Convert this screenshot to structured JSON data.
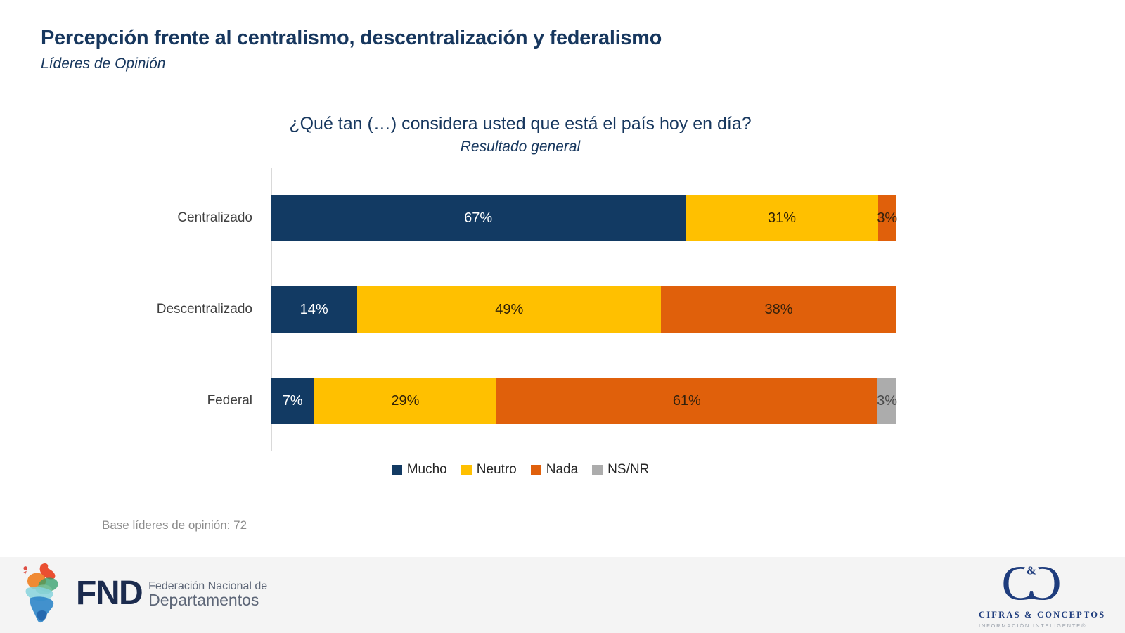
{
  "page": {
    "title": "Percepción frente al centralismo, descentralización y federalismo",
    "subtitle": "Líderes de Opinión"
  },
  "chart": {
    "title": "¿Qué tan (…) considera usted que está el país hoy en día?",
    "subtitle": "Resultado general",
    "base_note": "Base líderes de opinión: 72"
  },
  "chart_data": {
    "type": "bar",
    "orientation": "horizontal",
    "stacked": true,
    "unit": "%",
    "title": "¿Qué tan (…) considera usted que está el país hoy en día?",
    "subtitle": "Resultado general",
    "categories": [
      "Centralizado",
      "Descentralizado",
      "Federal"
    ],
    "series": [
      {
        "name": "Mucho",
        "color": "#123A63",
        "label_color": "#FFFFFF",
        "values": [
          67,
          14,
          7
        ]
      },
      {
        "name": "Neutro",
        "color": "#FFC000",
        "label_color": "#2E2008",
        "values": [
          31,
          49,
          29
        ]
      },
      {
        "name": "Nada",
        "color": "#E0600B",
        "label_color": "#33210C",
        "values": [
          3,
          38,
          61
        ]
      },
      {
        "name": "NS/NR",
        "color": "#ACACAC",
        "label_color": "#4A4A4A",
        "values": [
          0,
          0,
          3
        ]
      }
    ],
    "value_labels": "inside-center",
    "legend_position": "bottom",
    "grid": false,
    "xlim": [
      0,
      100
    ]
  },
  "footer": {
    "fnd": {
      "abbr": "FND",
      "name_line1": "Federación Nacional de",
      "name_line2": "Departamentos"
    },
    "cifras": {
      "ampersand": "&",
      "name": "CIFRAS & CONCEPTOS",
      "tagline": "INFORMACIÓN INTELIGENTE®"
    }
  },
  "colors": {
    "title_text": "#17375E",
    "footer_bg": "#F4F4F4",
    "axis_line": "#D9D9D9"
  }
}
